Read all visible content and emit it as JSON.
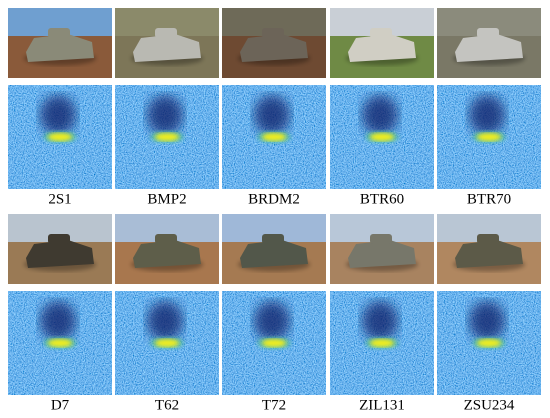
{
  "items": [
    {
      "label": "2S1"
    },
    {
      "label": "BMP2"
    },
    {
      "label": "BRDM2"
    },
    {
      "label": "BTR60"
    },
    {
      "label": "BTR70"
    },
    {
      "label": "D7"
    },
    {
      "label": "T62"
    },
    {
      "label": "T72"
    },
    {
      "label": "ZIL131"
    },
    {
      "label": "ZSU234"
    }
  ]
}
